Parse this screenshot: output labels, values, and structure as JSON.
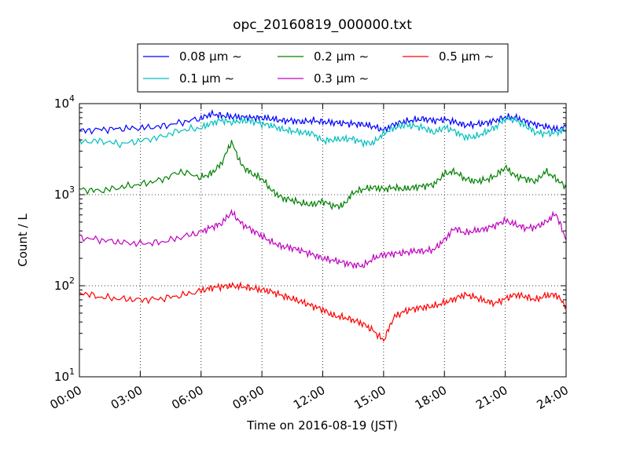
{
  "chart_data": {
    "type": "line",
    "title": "opc_20160819_000000.txt",
    "xlabel": "Time on 2016-08-19 (JST)",
    "ylabel": "Count / L",
    "xlim_hours": [
      0,
      24
    ],
    "ylim": [
      10,
      10000
    ],
    "yscale": "log",
    "grid": true,
    "legend_position": "top",
    "x_tick_labels": [
      "00:00",
      "03:00",
      "06:00",
      "09:00",
      "12:00",
      "15:00",
      "18:00",
      "21:00",
      "24:00"
    ],
    "y_tick_labels": [
      {
        "base": "10",
        "exp": "1"
      },
      {
        "base": "10",
        "exp": "2"
      },
      {
        "base": "10",
        "exp": "3"
      },
      {
        "base": "10",
        "exp": "4"
      }
    ],
    "x_hours": [
      0,
      1,
      2,
      3,
      4,
      5,
      6,
      6.5,
      7,
      7.5,
      8,
      8.5,
      9,
      9.5,
      10,
      10.5,
      11,
      11.5,
      12,
      12.5,
      13,
      13.5,
      14,
      14.5,
      15,
      15.5,
      16,
      16.5,
      17,
      17.5,
      18,
      18.5,
      19,
      19.5,
      20,
      20.5,
      21,
      21.5,
      22,
      22.5,
      23,
      23.5,
      24
    ],
    "series": [
      {
        "name": "0.08 μm ∼",
        "color": "#0000ff",
        "values": [
          5000,
          5200,
          5300,
          5400,
          5600,
          6200,
          6900,
          7700,
          7400,
          7200,
          7100,
          7000,
          7000,
          6800,
          6500,
          6500,
          6300,
          6500,
          6300,
          6200,
          6100,
          6000,
          5900,
          5600,
          5100,
          5900,
          6300,
          6600,
          6800,
          6500,
          6700,
          6300,
          5800,
          5900,
          6100,
          6500,
          7100,
          7000,
          6400,
          5900,
          5600,
          5200,
          5500
        ]
      },
      {
        "name": "0.1 μm ∼",
        "color": "#00bfbf",
        "values": [
          3800,
          3900,
          3600,
          3900,
          4300,
          5100,
          5400,
          6100,
          6600,
          6200,
          6500,
          6400,
          6000,
          5700,
          5200,
          5000,
          4800,
          4700,
          3900,
          4000,
          4100,
          4100,
          3700,
          3700,
          4700,
          5400,
          5800,
          5700,
          5400,
          4800,
          5500,
          5000,
          4300,
          4300,
          4800,
          5500,
          6800,
          6600,
          5700,
          4800,
          4700,
          4800,
          5200
        ]
      },
      {
        "name": "0.2 μm ∼",
        "color": "#008000",
        "values": [
          1150,
          1100,
          1200,
          1300,
          1450,
          1800,
          1550,
          1700,
          2200,
          3800,
          2100,
          1700,
          1500,
          1100,
          920,
          870,
          800,
          780,
          850,
          750,
          760,
          1050,
          1150,
          1200,
          1150,
          1200,
          1150,
          1200,
          1250,
          1300,
          1700,
          1800,
          1500,
          1400,
          1450,
          1600,
          2000,
          1600,
          1500,
          1400,
          1800,
          1500,
          1200
        ]
      },
      {
        "name": "0.3 μm ∼",
        "color": "#bf00bf",
        "values": [
          340,
          320,
          300,
          290,
          300,
          340,
          390,
          440,
          480,
          640,
          480,
          410,
          350,
          300,
          270,
          260,
          240,
          220,
          200,
          190,
          180,
          170,
          165,
          200,
          220,
          225,
          230,
          240,
          240,
          250,
          320,
          430,
          380,
          400,
          420,
          460,
          520,
          470,
          430,
          440,
          500,
          620,
          320
        ]
      },
      {
        "name": "0.5 μm ∼",
        "color": "#ff0000",
        "values": [
          85,
          75,
          72,
          70,
          72,
          78,
          88,
          95,
          98,
          100,
          98,
          94,
          90,
          86,
          78,
          72,
          66,
          60,
          55,
          47,
          45,
          42,
          38,
          32,
          25,
          45,
          52,
          56,
          58,
          60,
          65,
          72,
          80,
          75,
          68,
          64,
          72,
          80,
          76,
          70,
          78,
          80,
          60
        ]
      }
    ]
  }
}
